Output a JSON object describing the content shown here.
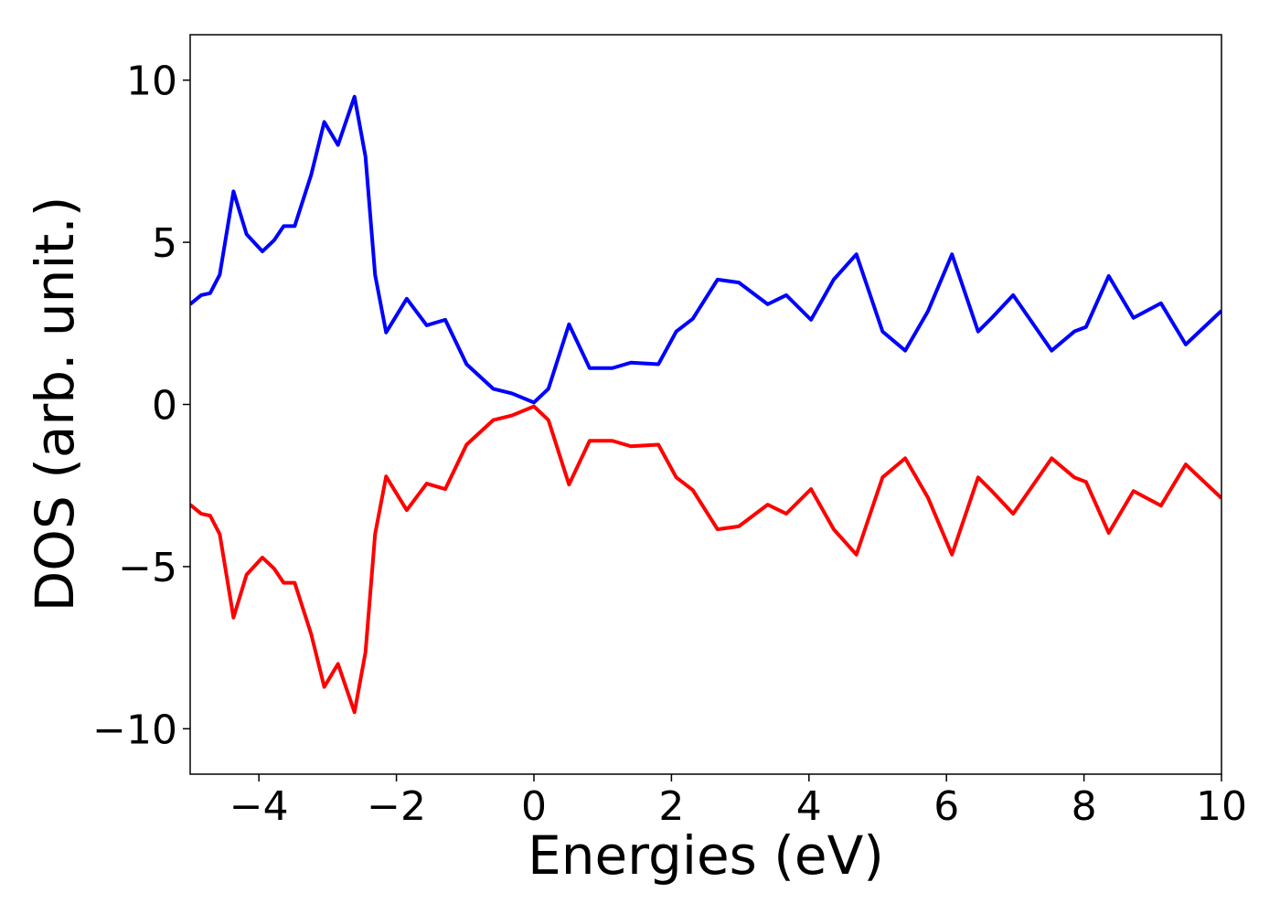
{
  "chart_data": {
    "type": "line",
    "xlabel": "Energies (eV)",
    "ylabel": "DOS (arb. unit.)",
    "x": [
      -5,
      -4.84,
      -4.71,
      -4.57,
      -4.37,
      -4.18,
      -3.95,
      -3.78,
      -3.64,
      -3.48,
      -3.24,
      -3.05,
      -2.85,
      -2.61,
      -2.45,
      -2.31,
      -2.15,
      -1.85,
      -1.56,
      -1.29,
      -0.98,
      -0.59,
      -0.32,
      0,
      0.21,
      0.51,
      0.81,
      1.14,
      1.41,
      1.81,
      2.07,
      2.31,
      2.67,
      2.98,
      3.4,
      3.67,
      4.03,
      4.36,
      4.69,
      5.07,
      5.4,
      5.73,
      6.08,
      6.46,
      6.66,
      6.97,
      7.53,
      7.86,
      8.03,
      8.36,
      8.72,
      9.12,
      9.48,
      10
    ],
    "series": [
      {
        "color": "#0000ff",
        "values": [
          3.09,
          3.37,
          3.43,
          4.0,
          6.57,
          5.25,
          4.72,
          5.06,
          5.5,
          5.5,
          7.08,
          8.71,
          8.0,
          9.49,
          7.64,
          3.99,
          2.22,
          3.26,
          2.44,
          2.61,
          1.24,
          0.48,
          0.34,
          0.06,
          0.48,
          2.47,
          1.12,
          1.12,
          1.29,
          1.24,
          2.25,
          2.64,
          3.85,
          3.76,
          3.09,
          3.37,
          2.61,
          3.85,
          4.63,
          2.25,
          1.66,
          2.87,
          4.63,
          2.25,
          2.67,
          3.37,
          1.66,
          2.25,
          2.39,
          3.96,
          2.67,
          3.12,
          1.85,
          2.89
        ]
      },
      {
        "color": "#ff0000",
        "values": [
          -3.09,
          -3.37,
          -3.43,
          -4.0,
          -6.57,
          -5.25,
          -4.72,
          -5.06,
          -5.5,
          -5.5,
          -7.08,
          -8.71,
          -8.0,
          -9.49,
          -7.64,
          -3.99,
          -2.22,
          -3.26,
          -2.44,
          -2.61,
          -1.24,
          -0.48,
          -0.34,
          -0.06,
          -0.48,
          -2.47,
          -1.12,
          -1.12,
          -1.29,
          -1.24,
          -2.25,
          -2.64,
          -3.85,
          -3.76,
          -3.09,
          -3.37,
          -2.61,
          -3.85,
          -4.63,
          -2.25,
          -1.66,
          -2.87,
          -4.63,
          -2.25,
          -2.67,
          -3.37,
          -1.66,
          -2.25,
          -2.39,
          -3.96,
          -2.67,
          -3.12,
          -1.85,
          -2.89
        ]
      }
    ],
    "xlim": [
      -5,
      10
    ],
    "xticks": [
      {
        "value": -4,
        "label": "−4"
      },
      {
        "value": -2,
        "label": "−2"
      },
      0,
      2,
      4,
      6,
      8,
      10
    ],
    "ylim": [
      -11.4,
      11.4
    ],
    "yticks": [
      {
        "value": -10,
        "label": "−10"
      },
      {
        "value": -5,
        "label": "−5"
      },
      0,
      5,
      10
    ],
    "grid": false
  }
}
